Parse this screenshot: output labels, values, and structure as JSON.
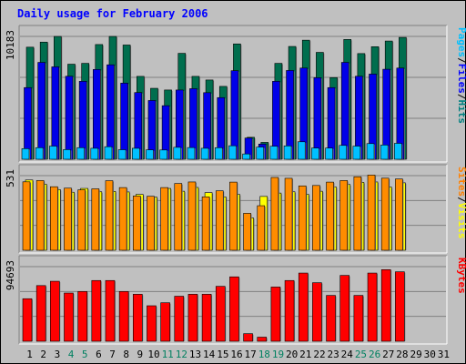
{
  "chart_data": {
    "type": "bar",
    "title": "Daily usage for February 2006",
    "days": [
      "1",
      "2",
      "3",
      "4",
      "5",
      "6",
      "7",
      "8",
      "9",
      "10",
      "11",
      "12",
      "13",
      "14",
      "15",
      "16",
      "17",
      "18",
      "19",
      "20",
      "21",
      "22",
      "23",
      "24",
      "25",
      "26",
      "27",
      "28",
      "29",
      "30",
      "31"
    ],
    "weekend_days": [
      "4",
      "5",
      "11",
      "12",
      "18",
      "19",
      "25",
      "26"
    ],
    "panels": [
      {
        "id": "hits",
        "max_label": "10183",
        "ymax": 10183,
        "legend": [
          {
            "text": "Pages",
            "color": "#00c0ff"
          },
          {
            "text": "/",
            "color": "#000000"
          },
          {
            "text": "Files",
            "color": "#0000ff"
          },
          {
            "text": "/",
            "color": "#000000"
          },
          {
            "text": "Hits",
            "color": "#008080"
          }
        ],
        "series": [
          {
            "name": "Hits",
            "color": "#006e4e",
            "values": [
              9290,
              9710,
              10180,
              7880,
              7950,
              9510,
              10180,
              9470,
              6870,
              5880,
              5740,
              8780,
              6870,
              6570,
              6040,
              9560,
              1820,
              1400,
              7950,
              9350,
              9870,
              8860,
              6770,
              9930,
              8760,
              9330,
              9800,
              10100,
              0,
              0,
              0
            ]
          },
          {
            "name": "Files",
            "color": "#0000e8",
            "values": [
              5940,
              8030,
              7660,
              6880,
              6460,
              7440,
              7830,
              6310,
              5530,
              4870,
              4440,
              5740,
              5850,
              5520,
              5110,
              7340,
              1760,
              1260,
              6460,
              7360,
              7560,
              6760,
              5940,
              8030,
              6880,
              7060,
              7460,
              7560,
              0,
              0,
              0
            ]
          },
          {
            "name": "Pages",
            "color": "#00c0ff",
            "values": [
              880,
              960,
              1090,
              800,
              960,
              910,
              1040,
              790,
              910,
              780,
              770,
              990,
              970,
              910,
              960,
              1120,
              440,
              1010,
              1080,
              1110,
              1450,
              930,
              930,
              1150,
              1090,
              1300,
              1180,
              1320,
              0,
              0,
              0
            ]
          }
        ]
      },
      {
        "id": "visits",
        "max_label": "531",
        "ymax": 531,
        "legend": [
          {
            "text": "Sites",
            "color": "#ff8000"
          },
          {
            "text": "/",
            "color": "#000000"
          },
          {
            "text": "Visits",
            "color": "#ffff00"
          }
        ],
        "series": [
          {
            "name": "Visits",
            "color": "#ffff00",
            "values": [
              500,
              470,
              432,
              413,
              440,
              416,
              419,
              415,
              397,
              378,
              440,
              420,
              447,
              410,
              380,
              398,
              230,
              383,
              407,
              416,
              398,
              420,
              450,
              468,
              483,
              486,
              450,
              480,
              0,
              0,
              0
            ]
          },
          {
            "name": "Sites",
            "color": "#ff8c00",
            "values": [
              487,
              496,
              452,
              442,
              430,
              437,
              495,
              446,
              386,
              384,
              446,
              475,
              486,
              380,
              423,
              485,
              263,
              317,
              518,
              512,
              458,
              461,
              485,
              496,
              523,
              535,
              513,
              507,
              0,
              0,
              0
            ]
          }
        ]
      },
      {
        "id": "kbytes",
        "max_label": "94693",
        "ymax": 94693,
        "legend": [
          {
            "text": "KBytes",
            "color": "#ff0000"
          }
        ],
        "series": [
          {
            "name": "KBytes",
            "color": "#ff0000",
            "values": [
              54000,
              70650,
              76140,
              61190,
              63170,
              77090,
              77090,
              63170,
              59640,
              45040,
              48840,
              57130,
              59640,
              59640,
              69710,
              81740,
              9610,
              5200,
              68830,
              77090,
              86540,
              74290,
              58150,
              83560,
              58150,
              86540,
              90890,
              88140,
              0,
              0,
              0
            ]
          }
        ]
      }
    ]
  }
}
